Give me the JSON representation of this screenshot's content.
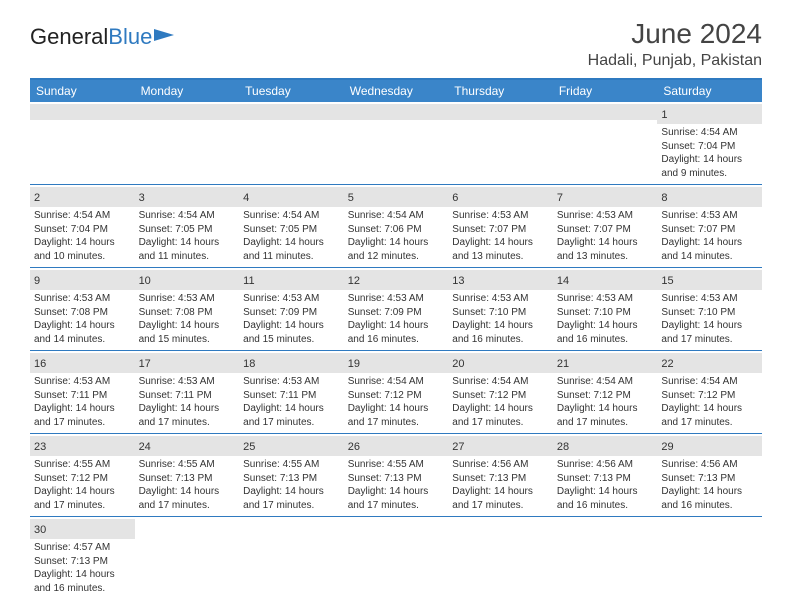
{
  "brand": {
    "part1": "General",
    "part2": "Blue"
  },
  "title": {
    "month": "June 2024",
    "location": "Hadali, Punjab, Pakistan"
  },
  "colors": {
    "accent": "#2f7ac0",
    "header_bg": "#3a85c9",
    "daynum_bg": "#e4e4e4",
    "text": "#333333",
    "bg": "#ffffff"
  },
  "typography": {
    "title_fontsize": 28,
    "location_fontsize": 16,
    "dow_fontsize": 12,
    "daynum_fontsize": 11,
    "body_fontsize": 10
  },
  "layout": {
    "columns": 7,
    "rows": 6
  },
  "days_of_week": [
    "Sunday",
    "Monday",
    "Tuesday",
    "Wednesday",
    "Thursday",
    "Friday",
    "Saturday"
  ],
  "weeks": [
    [
      null,
      null,
      null,
      null,
      null,
      null,
      {
        "n": "1",
        "sunrise": "Sunrise: 4:54 AM",
        "sunset": "Sunset: 7:04 PM",
        "dl1": "Daylight: 14 hours",
        "dl2": "and 9 minutes."
      }
    ],
    [
      {
        "n": "2",
        "sunrise": "Sunrise: 4:54 AM",
        "sunset": "Sunset: 7:04 PM",
        "dl1": "Daylight: 14 hours",
        "dl2": "and 10 minutes."
      },
      {
        "n": "3",
        "sunrise": "Sunrise: 4:54 AM",
        "sunset": "Sunset: 7:05 PM",
        "dl1": "Daylight: 14 hours",
        "dl2": "and 11 minutes."
      },
      {
        "n": "4",
        "sunrise": "Sunrise: 4:54 AM",
        "sunset": "Sunset: 7:05 PM",
        "dl1": "Daylight: 14 hours",
        "dl2": "and 11 minutes."
      },
      {
        "n": "5",
        "sunrise": "Sunrise: 4:54 AM",
        "sunset": "Sunset: 7:06 PM",
        "dl1": "Daylight: 14 hours",
        "dl2": "and 12 minutes."
      },
      {
        "n": "6",
        "sunrise": "Sunrise: 4:53 AM",
        "sunset": "Sunset: 7:07 PM",
        "dl1": "Daylight: 14 hours",
        "dl2": "and 13 minutes."
      },
      {
        "n": "7",
        "sunrise": "Sunrise: 4:53 AM",
        "sunset": "Sunset: 7:07 PM",
        "dl1": "Daylight: 14 hours",
        "dl2": "and 13 minutes."
      },
      {
        "n": "8",
        "sunrise": "Sunrise: 4:53 AM",
        "sunset": "Sunset: 7:07 PM",
        "dl1": "Daylight: 14 hours",
        "dl2": "and 14 minutes."
      }
    ],
    [
      {
        "n": "9",
        "sunrise": "Sunrise: 4:53 AM",
        "sunset": "Sunset: 7:08 PM",
        "dl1": "Daylight: 14 hours",
        "dl2": "and 14 minutes."
      },
      {
        "n": "10",
        "sunrise": "Sunrise: 4:53 AM",
        "sunset": "Sunset: 7:08 PM",
        "dl1": "Daylight: 14 hours",
        "dl2": "and 15 minutes."
      },
      {
        "n": "11",
        "sunrise": "Sunrise: 4:53 AM",
        "sunset": "Sunset: 7:09 PM",
        "dl1": "Daylight: 14 hours",
        "dl2": "and 15 minutes."
      },
      {
        "n": "12",
        "sunrise": "Sunrise: 4:53 AM",
        "sunset": "Sunset: 7:09 PM",
        "dl1": "Daylight: 14 hours",
        "dl2": "and 16 minutes."
      },
      {
        "n": "13",
        "sunrise": "Sunrise: 4:53 AM",
        "sunset": "Sunset: 7:10 PM",
        "dl1": "Daylight: 14 hours",
        "dl2": "and 16 minutes."
      },
      {
        "n": "14",
        "sunrise": "Sunrise: 4:53 AM",
        "sunset": "Sunset: 7:10 PM",
        "dl1": "Daylight: 14 hours",
        "dl2": "and 16 minutes."
      },
      {
        "n": "15",
        "sunrise": "Sunrise: 4:53 AM",
        "sunset": "Sunset: 7:10 PM",
        "dl1": "Daylight: 14 hours",
        "dl2": "and 17 minutes."
      }
    ],
    [
      {
        "n": "16",
        "sunrise": "Sunrise: 4:53 AM",
        "sunset": "Sunset: 7:11 PM",
        "dl1": "Daylight: 14 hours",
        "dl2": "and 17 minutes."
      },
      {
        "n": "17",
        "sunrise": "Sunrise: 4:53 AM",
        "sunset": "Sunset: 7:11 PM",
        "dl1": "Daylight: 14 hours",
        "dl2": "and 17 minutes."
      },
      {
        "n": "18",
        "sunrise": "Sunrise: 4:53 AM",
        "sunset": "Sunset: 7:11 PM",
        "dl1": "Daylight: 14 hours",
        "dl2": "and 17 minutes."
      },
      {
        "n": "19",
        "sunrise": "Sunrise: 4:54 AM",
        "sunset": "Sunset: 7:12 PM",
        "dl1": "Daylight: 14 hours",
        "dl2": "and 17 minutes."
      },
      {
        "n": "20",
        "sunrise": "Sunrise: 4:54 AM",
        "sunset": "Sunset: 7:12 PM",
        "dl1": "Daylight: 14 hours",
        "dl2": "and 17 minutes."
      },
      {
        "n": "21",
        "sunrise": "Sunrise: 4:54 AM",
        "sunset": "Sunset: 7:12 PM",
        "dl1": "Daylight: 14 hours",
        "dl2": "and 17 minutes."
      },
      {
        "n": "22",
        "sunrise": "Sunrise: 4:54 AM",
        "sunset": "Sunset: 7:12 PM",
        "dl1": "Daylight: 14 hours",
        "dl2": "and 17 minutes."
      }
    ],
    [
      {
        "n": "23",
        "sunrise": "Sunrise: 4:55 AM",
        "sunset": "Sunset: 7:12 PM",
        "dl1": "Daylight: 14 hours",
        "dl2": "and 17 minutes."
      },
      {
        "n": "24",
        "sunrise": "Sunrise: 4:55 AM",
        "sunset": "Sunset: 7:13 PM",
        "dl1": "Daylight: 14 hours",
        "dl2": "and 17 minutes."
      },
      {
        "n": "25",
        "sunrise": "Sunrise: 4:55 AM",
        "sunset": "Sunset: 7:13 PM",
        "dl1": "Daylight: 14 hours",
        "dl2": "and 17 minutes."
      },
      {
        "n": "26",
        "sunrise": "Sunrise: 4:55 AM",
        "sunset": "Sunset: 7:13 PM",
        "dl1": "Daylight: 14 hours",
        "dl2": "and 17 minutes."
      },
      {
        "n": "27",
        "sunrise": "Sunrise: 4:56 AM",
        "sunset": "Sunset: 7:13 PM",
        "dl1": "Daylight: 14 hours",
        "dl2": "and 17 minutes."
      },
      {
        "n": "28",
        "sunrise": "Sunrise: 4:56 AM",
        "sunset": "Sunset: 7:13 PM",
        "dl1": "Daylight: 14 hours",
        "dl2": "and 16 minutes."
      },
      {
        "n": "29",
        "sunrise": "Sunrise: 4:56 AM",
        "sunset": "Sunset: 7:13 PM",
        "dl1": "Daylight: 14 hours",
        "dl2": "and 16 minutes."
      }
    ],
    [
      {
        "n": "30",
        "sunrise": "Sunrise: 4:57 AM",
        "sunset": "Sunset: 7:13 PM",
        "dl1": "Daylight: 14 hours",
        "dl2": "and 16 minutes."
      },
      null,
      null,
      null,
      null,
      null,
      null
    ]
  ]
}
